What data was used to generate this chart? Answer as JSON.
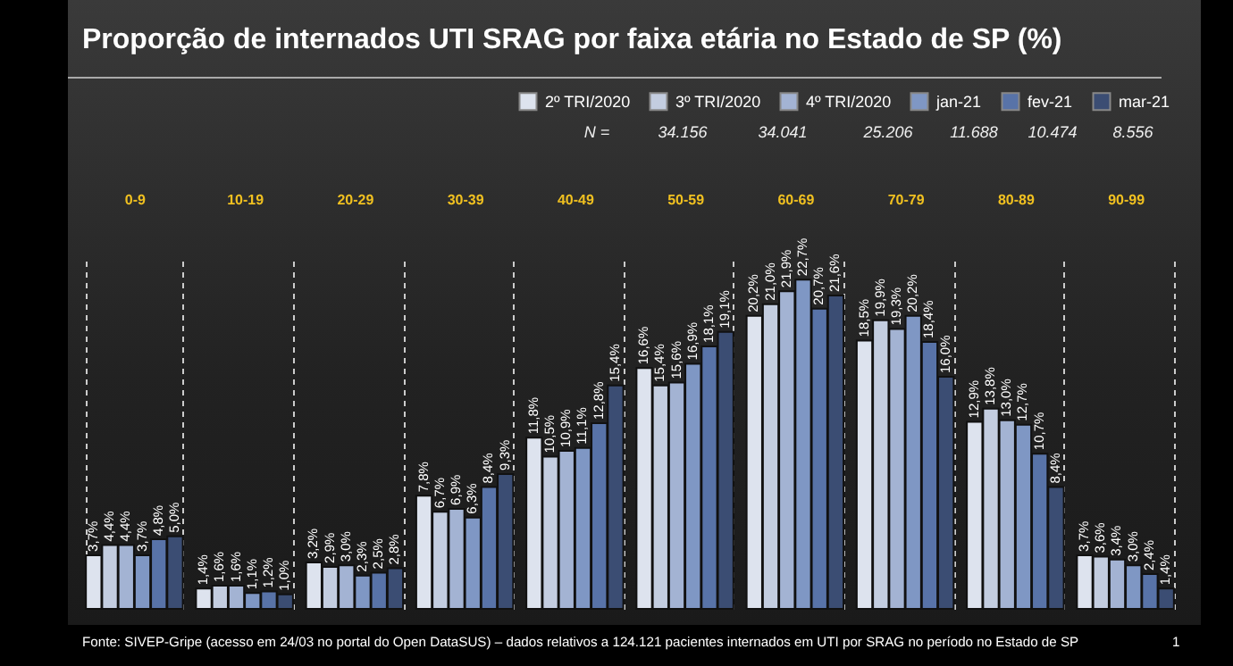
{
  "chart_data": {
    "type": "bar",
    "title": "Proporção de internados UTI SRAG por faixa etária no Estado de SP (%)",
    "categories": [
      "0-9",
      "10-19",
      "20-29",
      "30-39",
      "40-49",
      "50-59",
      "60-69",
      "70-79",
      "80-89",
      "90-99"
    ],
    "series": [
      {
        "name": "2º TRI/2020",
        "color": "#dde3ee",
        "values": [
          3.7,
          1.4,
          3.2,
          7.8,
          11.8,
          16.6,
          20.2,
          18.5,
          12.9,
          3.7
        ],
        "value_labels": [
          "3,7%",
          "1,4%",
          "3,2%",
          "7,8%",
          "11,8%",
          "16,6%",
          "20,2%",
          "18,5%",
          "12,9%",
          "3,7%"
        ]
      },
      {
        "name": "3º TRI/2020",
        "color": "#c3cde0",
        "values": [
          4.4,
          1.6,
          2.9,
          6.7,
          10.5,
          15.4,
          21.0,
          19.9,
          13.8,
          3.6
        ],
        "value_labels": [
          "4,4%",
          "1,6%",
          "2,9%",
          "6,7%",
          "10,5%",
          "15,4%",
          "21,0%",
          "19,9%",
          "13,8%",
          "3,6%"
        ]
      },
      {
        "name": "4º TRI/2020",
        "color": "#a3b3d3",
        "values": [
          4.4,
          1.6,
          3.0,
          6.9,
          10.9,
          15.6,
          21.9,
          19.3,
          13.0,
          3.4
        ],
        "value_labels": [
          "4,4%",
          "1,6%",
          "3,0%",
          "6,9%",
          "10,9%",
          "15,6%",
          "21,9%",
          "19,3%",
          "13,0%",
          "3,4%"
        ]
      },
      {
        "name": "jan-21",
        "color": "#7f97c4",
        "values": [
          3.7,
          1.1,
          2.3,
          6.3,
          11.1,
          16.9,
          22.7,
          20.2,
          12.7,
          3.0
        ],
        "value_labels": [
          "3,7%",
          "1,1%",
          "2,3%",
          "6,3%",
          "11,1%",
          "16,9%",
          "22,7%",
          "20,2%",
          "12,7%",
          "3,0%"
        ]
      },
      {
        "name": "fev-21",
        "color": "#5873a8",
        "values": [
          4.8,
          1.2,
          2.5,
          8.4,
          12.8,
          18.1,
          20.7,
          18.4,
          10.7,
          2.4
        ],
        "value_labels": [
          "4,8%",
          "1,2%",
          "2,5%",
          "8,4%",
          "12,8%",
          "18,1%",
          "20,7%",
          "18,4%",
          "10,7%",
          "2,4%"
        ]
      },
      {
        "name": "mar-21",
        "color": "#3b4d73",
        "values": [
          5.0,
          1.0,
          2.8,
          9.3,
          15.4,
          19.1,
          21.6,
          16.0,
          8.4,
          1.4
        ],
        "value_labels": [
          "5,0%",
          "1,0%",
          "2,8%",
          "9,3%",
          "15,4%",
          "19,1%",
          "21,6%",
          "16,0%",
          "8,4%",
          "1,4%"
        ]
      }
    ],
    "annotations": [
      "N =",
      "34.156",
      "34.041",
      "25.206",
      "11.688",
      "10.474",
      "8.556",
      "Fonte: SIVEP-Gripe (acesso em 24/03 no portal do Open DataSUS) – dados relativos a 124.121 pacientes internados em UTI por SRAG no período no Estado de SP",
      "1"
    ],
    "grid": "x",
    "legend": "top right",
    "tick_labels": "x"
  }
}
